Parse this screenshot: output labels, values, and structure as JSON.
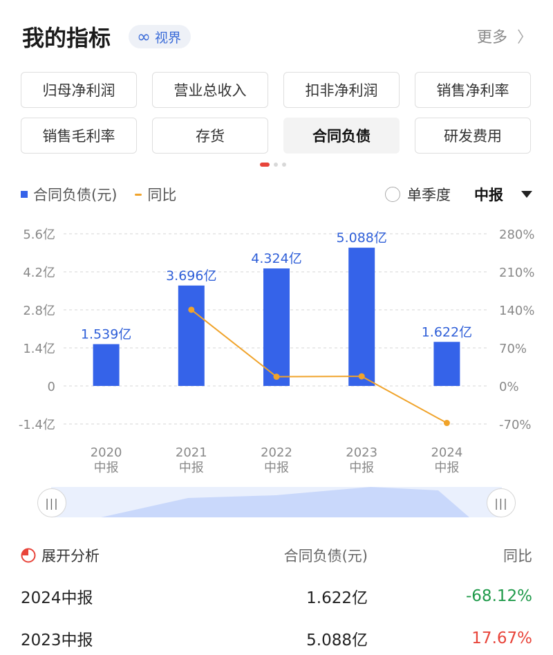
{
  "header": {
    "title": "我的指标",
    "vision_icon": "infinity-icon",
    "vision_label": "视界",
    "more_label": "更多",
    "more_icon": "chevron-right-icon"
  },
  "metrics": [
    {
      "label": "归母净利润",
      "active": false
    },
    {
      "label": "营业总收入",
      "active": false
    },
    {
      "label": "扣非净利润",
      "active": false
    },
    {
      "label": "销售净利率",
      "active": false
    },
    {
      "label": "销售毛利率",
      "active": false
    },
    {
      "label": "存货",
      "active": false
    },
    {
      "label": "合同负债",
      "active": true
    },
    {
      "label": "研发费用",
      "active": false
    }
  ],
  "pager": {
    "pages": 3,
    "current": 1
  },
  "legend": {
    "bar_label": "合同负债(元)",
    "line_label": "同比",
    "single_quarter_label": "单季度",
    "period_select": "中报"
  },
  "colors": {
    "bar": "#3563e9",
    "line": "#f0a32a",
    "bar_label": "#2f5fd8",
    "negative": "#1f9a4a",
    "positive": "#e8443a"
  },
  "chart_data": {
    "type": "bar",
    "categories": [
      "2020\n中报",
      "2021\n中报",
      "2022\n中报",
      "2023\n中报",
      "2024\n中报"
    ],
    "series": [
      {
        "name": "合同负债(元)",
        "type": "bar",
        "values": [
          1.539,
          3.696,
          4.324,
          5.088,
          1.622
        ],
        "labels": [
          "1.539亿",
          "3.696亿",
          "4.324亿",
          "5.088亿",
          "1.622亿"
        ],
        "axis": "left"
      },
      {
        "name": "同比",
        "type": "line",
        "values": [
          null,
          140.2,
          17.0,
          17.67,
          -68.12
        ],
        "axis": "right"
      }
    ],
    "yticks_left": [
      "5.6亿",
      "4.2亿",
      "2.8亿",
      "1.4亿",
      "0",
      "-1.4亿"
    ],
    "yticks_right": [
      "280%",
      "210%",
      "140%",
      "70%",
      "0%",
      "-70%"
    ],
    "ylim_left": [
      -1.4,
      5.6
    ],
    "ylim_right": [
      -70,
      280
    ],
    "grid": true
  },
  "analysis": {
    "title": "展开分析",
    "icon": "pie-chart-icon",
    "col_value": "合同负债(元)",
    "col_yoy": "同比",
    "rows": [
      {
        "period": "2024中报",
        "value": "1.622亿",
        "yoy": "-68.12%",
        "sign": "negative"
      },
      {
        "period": "2023中报",
        "value": "5.088亿",
        "yoy": "17.67%",
        "sign": "positive"
      }
    ]
  }
}
